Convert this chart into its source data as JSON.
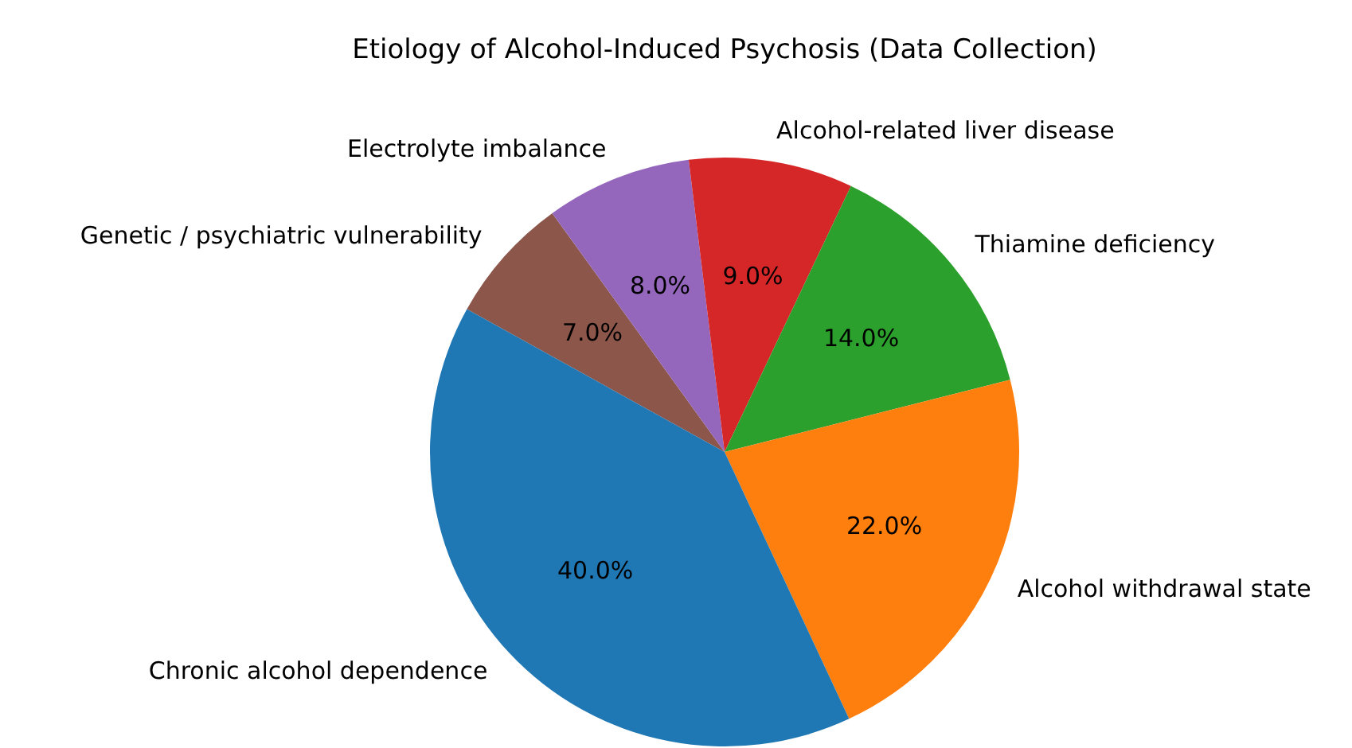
{
  "chart_data": {
    "type": "pie",
    "title": "Etiology of Alcohol-Induced Psychosis (Data Collection)",
    "categories": [
      "Genetic / psychiatric vulnerability",
      "Electrolyte imbalance",
      "Alcohol-related liver disease",
      "Thiamine deficiency",
      "Alcohol withdrawal state",
      "Chronic alcohol dependence"
    ],
    "values": [
      7,
      8,
      9,
      14,
      22,
      40
    ],
    "value_labels": [
      "7.0%",
      "8.0%",
      "9.0%",
      "14.0%",
      "22.0%",
      "40.0%"
    ],
    "colors": [
      "#8c564b",
      "#9467bd",
      "#d62728",
      "#2ca02c",
      "#ff7f0e",
      "#1f77b4"
    ],
    "legend": false
  }
}
